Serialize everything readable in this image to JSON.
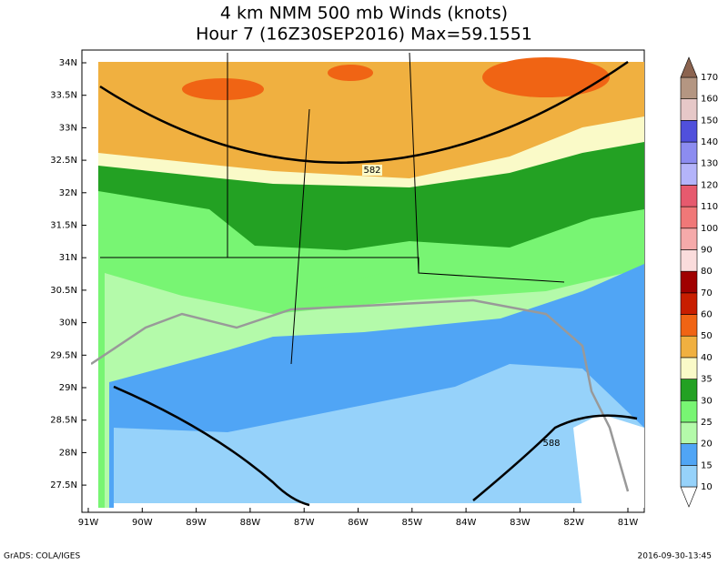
{
  "header": {
    "title": "4 km NMM 500 mb Winds (knots)",
    "subtitle": "Hour 7 (16Z30SEP2016) Max=59.1551"
  },
  "map": {
    "lat_labels": [
      "34N",
      "33.5N",
      "33N",
      "32.5N",
      "32N",
      "31.5N",
      "31N",
      "30.5N",
      "30N",
      "29.5N",
      "29N",
      "28.5N",
      "28N",
      "27.5N"
    ],
    "lon_labels": [
      "91W",
      "90W",
      "89W",
      "88W",
      "87W",
      "86W",
      "85W",
      "84W",
      "83W",
      "82W",
      "81W"
    ],
    "contour_labels": [
      "582",
      "588"
    ]
  },
  "colorbar": {
    "labels": [
      10,
      15,
      20,
      25,
      30,
      35,
      40,
      50,
      60,
      70,
      80,
      90,
      100,
      110,
      120,
      130,
      140,
      150,
      160,
      170
    ],
    "colors": [
      "#ffffff",
      "#96d2fa",
      "#50a5f5",
      "#b4faaa",
      "#78f573",
      "#23a123",
      "#fafac8",
      "#f0b040",
      "#f06414",
      "#c81e00",
      "#a00000",
      "#fadcdc",
      "#f5aaaa",
      "#f07878",
      "#e65a6e",
      "#b4b4fa",
      "#8c8cf0",
      "#5050dc",
      "#e6c8c8",
      "#b49682",
      "#8c6450"
    ]
  },
  "footer": {
    "left": "GrADS: COLA/IGES",
    "right": "2016-09-30-13:45"
  }
}
